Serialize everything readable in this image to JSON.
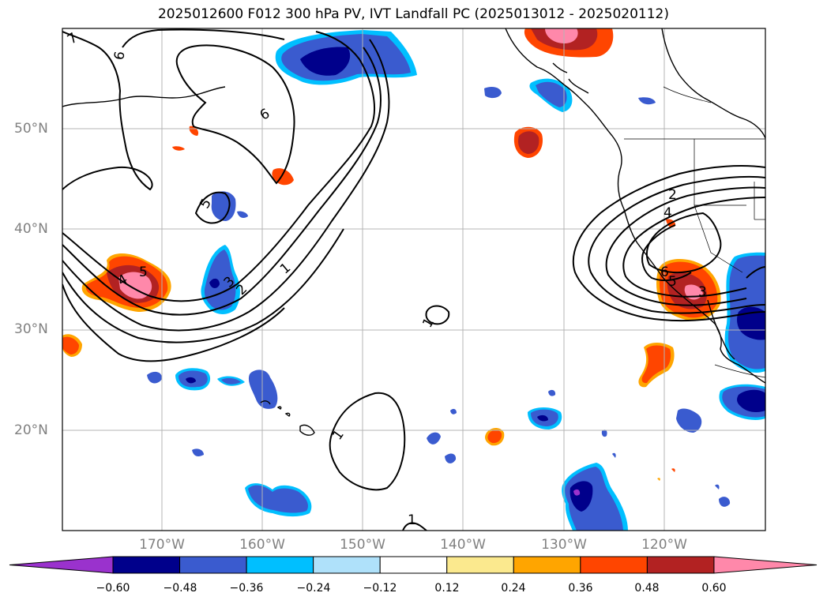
{
  "title": "2025012600 F012 300 hPa PV, IVT Landfall PC (2025013012 - 2025020112)",
  "lat_labels": [
    "50°N",
    "40°N",
    "30°N",
    "20°N"
  ],
  "lon_labels": [
    "170°W",
    "160°W",
    "150°W",
    "140°W",
    "130°W",
    "120°W"
  ],
  "colorbar": {
    "ticks": [
      "−0.60",
      "−0.48",
      "−0.36",
      "−0.24",
      "−0.12",
      "0.12",
      "0.24",
      "0.36",
      "0.48",
      "0.60"
    ],
    "colors": [
      "#9a32cd",
      "#00008b",
      "#3a5bcf",
      "#00bfff",
      "#afe1fa",
      "#ffffff",
      "#fbe98e",
      "#ffa500",
      "#ff4500",
      "#b22222",
      "#ff88aa"
    ]
  },
  "contour_labels": [
    "7",
    "6",
    "6",
    "5",
    "3",
    "2",
    "1",
    "4",
    "5",
    "2",
    "4",
    "6",
    "5",
    "3",
    "1",
    "1",
    "1"
  ]
}
